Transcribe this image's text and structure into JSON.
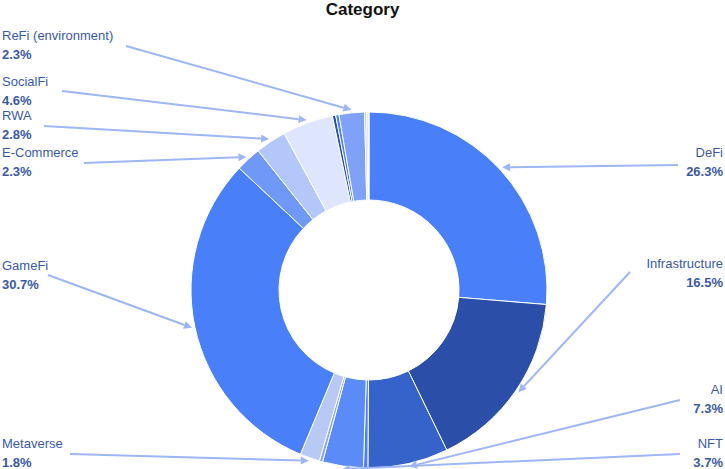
{
  "chart_data": {
    "type": "pie",
    "title": "Category",
    "categories": [
      "DeFi",
      "Infrastructure",
      "AI",
      null,
      "NFT",
      null,
      "Metaverse",
      "GameFi",
      "E-Commerce",
      "RWA",
      "SocialFi",
      null,
      null,
      "ReFi (environment)",
      null,
      null,
      null
    ],
    "values": [
      26.3,
      16.5,
      7.3,
      0.4,
      3.7,
      0.3,
      1.8,
      30.7,
      2.3,
      2.8,
      4.6,
      0.3,
      0.3,
      2.3,
      0.2,
      0.1,
      0.1
    ],
    "value_labels": [
      "26.3%",
      "16.5%",
      "7.3%",
      null,
      "3.7%",
      null,
      "1.8%",
      "30.7%",
      "2.3%",
      "2.8%",
      "4.6%",
      null,
      null,
      "2.3%",
      null,
      null,
      null
    ],
    "colors": [
      "#4a7ffa",
      "#2b4fa8",
      "#3563c9",
      "#4d7ff5",
      "#5b8bf7",
      "#8aa8f0",
      "#b9c9f5",
      "#4a7ffa",
      "#6f98f7",
      "#b3c7fb",
      "#dde6fd",
      "#2b4fa8",
      "#4a7ffa",
      "#7fa2f8",
      "#b9cbf9",
      "#2b4fa8",
      "#e8eefe"
    ],
    "data_labels": true
  }
}
